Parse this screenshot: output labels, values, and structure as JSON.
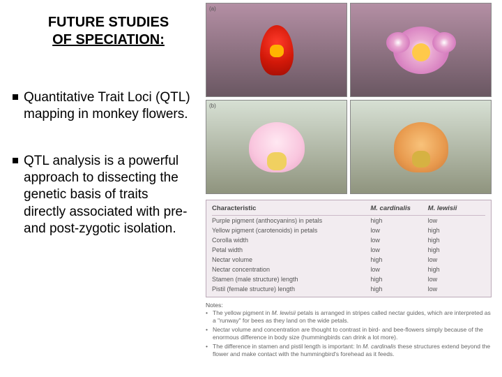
{
  "left": {
    "title_line1": "FUTURE STUDIES",
    "title_line2": "OF SPECIATION:",
    "bullets": [
      "Quantitative Trait Loci (QTL) mapping in monkey flowers.",
      "QTL analysis is a powerful approach to dissecting the genetic basis of traits directly associated with pre- and post-zygotic isolation."
    ]
  },
  "panels": {
    "a": "(a)",
    "b": "(b)"
  },
  "flower_colors": {
    "red_petal": "#d11808",
    "red_throat": "#ffb300",
    "pink_petal": "#d77fc0",
    "pink_center": "#ffc94a",
    "hybrid_pink": "#f9c6de",
    "hybrid_orange": "#e89a4e",
    "bg_dark": "#6a5762",
    "bg_light": "#8f947e"
  },
  "table": {
    "headers": [
      "Characteristic",
      "M. cardinalis",
      "M. lewisii"
    ],
    "rows": [
      [
        "Purple pigment (anthocyanins) in petals",
        "high",
        "low"
      ],
      [
        "Yellow pigment (carotenoids) in petals",
        "low",
        "high"
      ],
      [
        "Corolla width",
        "low",
        "high"
      ],
      [
        "Petal width",
        "low",
        "high"
      ],
      [
        "Nectar volume",
        "high",
        "low"
      ],
      [
        "Nectar concentration",
        "low",
        "high"
      ],
      [
        "Stamen (male structure) length",
        "high",
        "low"
      ],
      [
        "Pistil (female structure) length",
        "high",
        "low"
      ]
    ],
    "bg_color": "#f2ecf0",
    "border_color": "#bba9b8",
    "font_size": 9
  },
  "notes": {
    "title": "Notes:",
    "items": [
      "The yellow pigment in M. lewisii petals is arranged in stripes called nectar guides, which are interpreted as a \"runway\" for bees as they land on the wide petals.",
      "Nectar volume and concentration are thought to contrast in bird- and bee-flowers simply because of the enormous difference in body size (hummingbirds can drink a lot more).",
      "The difference in stamen and pistil length is important: In M. cardinalis these structures extend beyond the flower and make contact with the hummingbird's forehead as it feeds."
    ]
  }
}
